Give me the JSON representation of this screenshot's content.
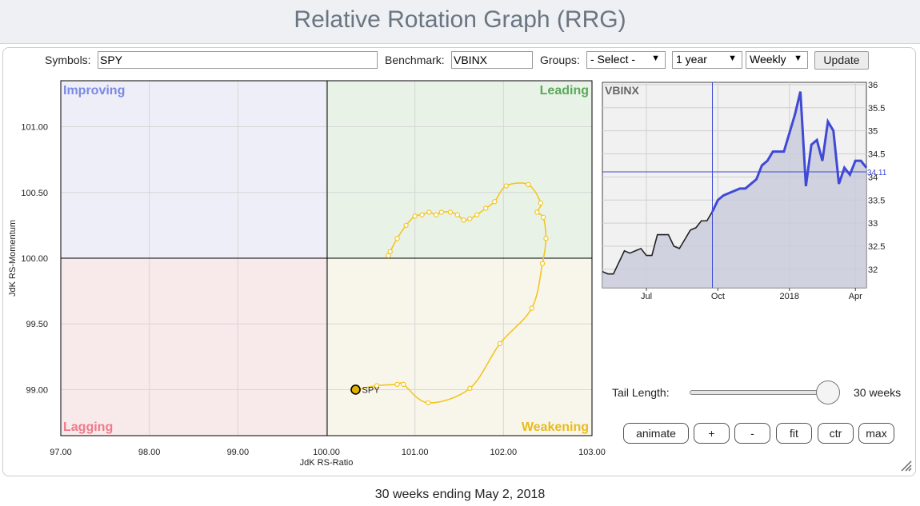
{
  "header": {
    "title": "Relative Rotation Graph (RRG)"
  },
  "controls": {
    "symbols_label": "Symbols:",
    "symbols_value": "SPY",
    "benchmark_label": "Benchmark:",
    "benchmark_value": "VBINX",
    "groups_label": "Groups:",
    "groups_value": "- Select -",
    "period_value": "1 year",
    "frequency_value": "Weekly",
    "update_label": "Update"
  },
  "rrg": {
    "quadrants": {
      "improving": "Improving",
      "leading": "Leading",
      "lagging": "Lagging",
      "weakening": "Weakening"
    },
    "colors": {
      "improving": "#6f7fe0",
      "leading": "#58a858",
      "lagging": "#f07a8a",
      "weakening": "#e6b820",
      "tail": "#f2c524",
      "marker_fill": "#e0b000"
    },
    "xlabel": "JdK RS-Ratio",
    "ylabel": "JdK RS-Momentum",
    "x_ticks": [
      "97.00",
      "98.00",
      "99.00",
      "100.00",
      "101.00",
      "102.00",
      "103.00"
    ],
    "y_ticks": [
      "101.00",
      "100.50",
      "100.00",
      "99.50",
      "99.00"
    ],
    "symbol_label": "SPY"
  },
  "chart_data": [
    {
      "type": "scatter",
      "title": "",
      "xlabel": "JdK RS-Ratio",
      "ylabel": "JdK RS-Momentum",
      "xlim": [
        97.0,
        103.0
      ],
      "ylim": [
        98.65,
        101.35
      ],
      "series": [
        {
          "name": "SPY",
          "x": [
            100.7,
            100.72,
            100.8,
            100.9,
            101.0,
            101.08,
            101.16,
            101.24,
            101.3,
            101.4,
            101.48,
            101.55,
            101.62,
            101.7,
            101.8,
            101.9,
            102.03,
            102.28,
            102.42,
            102.38,
            102.45,
            102.48,
            102.44,
            102.32,
            101.96,
            101.62,
            101.15,
            100.87,
            100.8,
            100.57,
            100.33
          ],
          "y": [
            100.02,
            100.05,
            100.15,
            100.25,
            100.32,
            100.33,
            100.35,
            100.33,
            100.35,
            100.35,
            100.33,
            100.29,
            100.3,
            100.33,
            100.38,
            100.43,
            100.55,
            100.56,
            100.42,
            100.35,
            100.31,
            100.15,
            99.96,
            99.62,
            99.35,
            99.01,
            98.9,
            99.04,
            99.04,
            99.03,
            99.0
          ]
        }
      ]
    },
    {
      "type": "line",
      "title": "VBINX",
      "x_ticks": [
        "Jul",
        "Oct",
        "2018",
        "Apr"
      ],
      "y_ticks": [
        "36",
        "35.5",
        "35",
        "34.5",
        "34",
        "33.5",
        "33",
        "32.5",
        "32"
      ],
      "ylim": [
        31.6,
        36.05
      ],
      "current_value": "34.11",
      "series": [
        {
          "name": "VBINX",
          "values": [
            31.95,
            31.9,
            31.9,
            32.15,
            32.4,
            32.35,
            32.4,
            32.45,
            32.3,
            32.3,
            32.75,
            32.75,
            32.75,
            32.5,
            32.45,
            32.65,
            32.85,
            32.9,
            33.05,
            33.05,
            33.25,
            33.5,
            33.6,
            33.65,
            33.7,
            33.75,
            33.75,
            33.85,
            33.95,
            34.25,
            34.35,
            34.55,
            34.55,
            34.55,
            34.95,
            35.35,
            35.85,
            33.8,
            34.7,
            34.8,
            34.35,
            35.2,
            35.0,
            33.85,
            34.2,
            34.05,
            34.35,
            34.35,
            34.2
          ]
        }
      ]
    }
  ],
  "side": {
    "tail_length_label": "Tail Length:",
    "tail_length_value": "30 weeks",
    "tail_fraction": 1.0,
    "buttons": [
      "animate",
      "+",
      "-",
      "fit",
      "ctr",
      "max"
    ]
  },
  "footer": {
    "text": "30 weeks ending May 2, 2018"
  }
}
